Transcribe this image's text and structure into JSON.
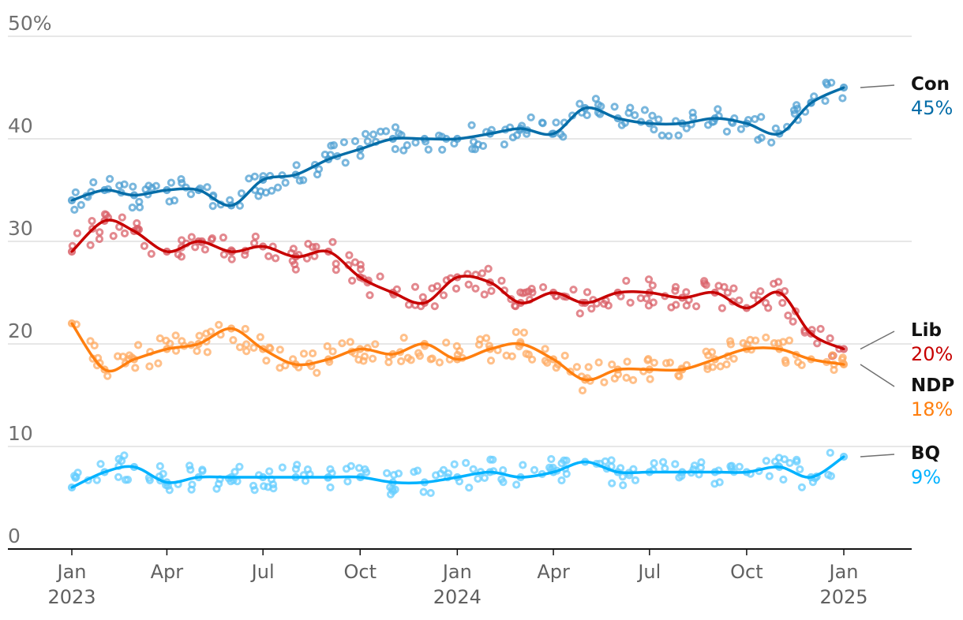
{
  "chart_data": {
    "type": "line",
    "title": "",
    "xlabel": "",
    "ylabel": "",
    "ylim": [
      0,
      50
    ],
    "y_ticks": [
      "0",
      "10",
      "20",
      "30",
      "40",
      "50%"
    ],
    "x_ticks": [
      {
        "date": "2023-01-01",
        "label": "Jan",
        "year": "2023"
      },
      {
        "date": "2023-04-01",
        "label": "Apr",
        "year": ""
      },
      {
        "date": "2023-07-01",
        "label": "Jul",
        "year": ""
      },
      {
        "date": "2023-10-01",
        "label": "Oct",
        "year": ""
      },
      {
        "date": "2024-01-01",
        "label": "Jan",
        "year": "2024"
      },
      {
        "date": "2024-04-01",
        "label": "Apr",
        "year": ""
      },
      {
        "date": "2024-07-01",
        "label": "Jul",
        "year": ""
      },
      {
        "date": "2024-10-01",
        "label": "Oct",
        "year": ""
      },
      {
        "date": "2025-01-01",
        "label": "Jan",
        "year": "2025"
      }
    ],
    "xlim": [
      "2022-11-20",
      "2025-03-06"
    ],
    "grid": "horizontal",
    "legend": "right-end labels",
    "series": [
      {
        "name": "Con",
        "final_label": "45%",
        "color": "#056da8",
        "point_color": "#4d9fd1",
        "x": [
          "2023-01-01",
          "2023-02-01",
          "2023-03-01",
          "2023-04-01",
          "2023-05-01",
          "2023-06-01",
          "2023-07-01",
          "2023-08-01",
          "2023-09-01",
          "2023-10-01",
          "2023-11-01",
          "2023-12-01",
          "2024-01-01",
          "2024-02-01",
          "2024-03-01",
          "2024-04-01",
          "2024-05-01",
          "2024-06-01",
          "2024-07-01",
          "2024-08-01",
          "2024-09-01",
          "2024-10-01",
          "2024-11-01",
          "2024-12-01",
          "2025-01-01"
        ],
        "values": [
          34,
          35,
          34.5,
          35,
          35,
          33.5,
          36,
          36.5,
          38,
          39,
          40,
          40,
          40,
          40.5,
          41,
          40.5,
          43,
          42,
          41.5,
          41.5,
          42,
          41.5,
          40.5,
          43.5,
          45
        ]
      },
      {
        "name": "Lib",
        "final_label": "20%",
        "color": "#c70000",
        "point_color": "#d9616a",
        "x": [
          "2023-01-01",
          "2023-02-01",
          "2023-03-01",
          "2023-04-01",
          "2023-05-01",
          "2023-06-01",
          "2023-07-01",
          "2023-08-01",
          "2023-09-01",
          "2023-10-01",
          "2023-11-01",
          "2023-12-01",
          "2024-01-01",
          "2024-02-01",
          "2024-03-01",
          "2024-04-01",
          "2024-05-01",
          "2024-06-01",
          "2024-07-01",
          "2024-08-01",
          "2024-09-01",
          "2024-10-01",
          "2024-11-01",
          "2024-12-01",
          "2025-01-01"
        ],
        "values": [
          29,
          32,
          31,
          29,
          30,
          29,
          29.5,
          28.5,
          29,
          26.5,
          25,
          24,
          26.5,
          26,
          24,
          25,
          24,
          25,
          25,
          24.5,
          25,
          23.5,
          25,
          21,
          19.5
        ]
      },
      {
        "name": "NDP",
        "final_label": "18%",
        "color": "#ff7f0f",
        "point_color": "#ffab63",
        "x": [
          "2023-01-01",
          "2023-02-01",
          "2023-03-01",
          "2023-04-01",
          "2023-05-01",
          "2023-06-01",
          "2023-07-01",
          "2023-08-01",
          "2023-09-01",
          "2023-10-01",
          "2023-11-01",
          "2023-12-01",
          "2024-01-01",
          "2024-02-01",
          "2024-03-01",
          "2024-04-01",
          "2024-05-01",
          "2024-06-01",
          "2024-07-01",
          "2024-08-01",
          "2024-09-01",
          "2024-10-01",
          "2024-11-01",
          "2024-12-01",
          "2025-01-01"
        ],
        "values": [
          22,
          17.5,
          18.5,
          19.5,
          20,
          21.5,
          19.5,
          18,
          18.5,
          19.5,
          19,
          20,
          18.5,
          19.5,
          20,
          18.5,
          16.5,
          17.5,
          17.5,
          17.5,
          18.5,
          19.5,
          19.5,
          18.5,
          18
        ]
      },
      {
        "name": "BQ",
        "final_label": "9%",
        "color": "#00b2ff",
        "point_color": "#66ceff",
        "x": [
          "2023-01-01",
          "2023-02-01",
          "2023-03-01",
          "2023-04-01",
          "2023-05-01",
          "2023-06-01",
          "2023-07-01",
          "2023-08-01",
          "2023-09-01",
          "2023-10-01",
          "2023-11-01",
          "2023-12-01",
          "2024-01-01",
          "2024-02-01",
          "2024-03-01",
          "2024-04-01",
          "2024-05-01",
          "2024-06-01",
          "2024-07-01",
          "2024-08-01",
          "2024-09-01",
          "2024-10-01",
          "2024-11-01",
          "2024-12-01",
          "2025-01-01"
        ],
        "values": [
          6,
          7.5,
          8,
          6.5,
          7,
          7,
          7,
          7,
          7,
          7,
          6.5,
          6.5,
          7,
          7.5,
          7,
          7.5,
          8.5,
          7.5,
          7.5,
          7.5,
          7.5,
          7.5,
          8,
          7,
          9
        ]
      }
    ]
  }
}
